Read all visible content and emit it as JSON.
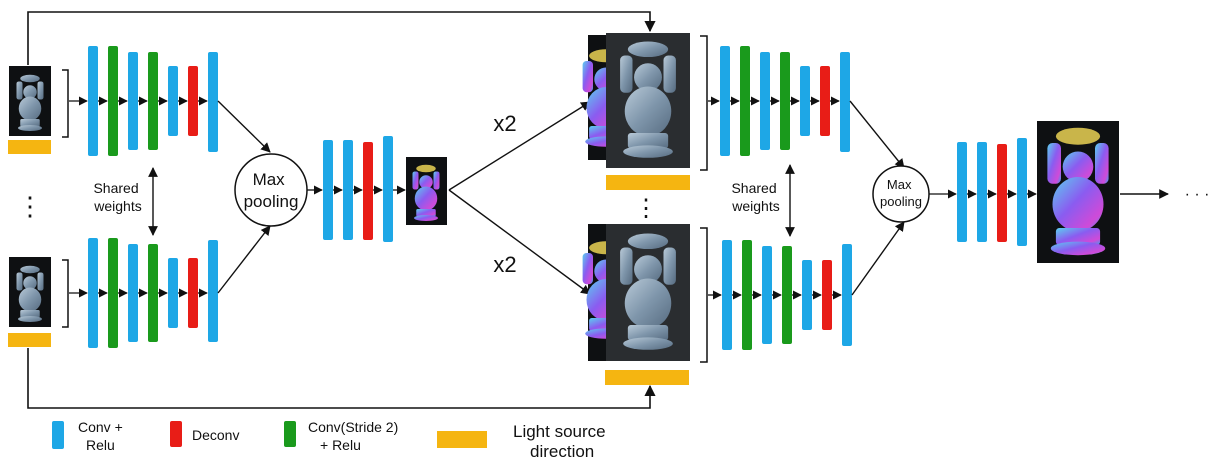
{
  "labels": {
    "max_pooling_1": [
      "Max",
      "pooling"
    ],
    "max_pooling_2": [
      "Max",
      "pooling"
    ],
    "shared_weights_1": [
      "Shared",
      "weights"
    ],
    "shared_weights_2": [
      "Shared",
      "weights"
    ],
    "x2_top": "x2",
    "x2_bottom": "x2",
    "vertical_dots": "⋮",
    "trailing_dots": "· · ·"
  },
  "legend": {
    "conv_relu": [
      "Conv +",
      "Relu"
    ],
    "deconv": "Deconv",
    "conv_stride2": [
      "Conv(Stride 2)",
      "+ Relu"
    ],
    "light_source": [
      "Light source",
      "direction"
    ]
  },
  "colors": {
    "conv_relu": "#1ea7e6",
    "deconv": "#e81d17",
    "conv_stride2": "#1a9a1c",
    "light_source": "#f5b511",
    "image_bg": "#0e1012",
    "statue_gray": "#8aa2b8",
    "normal_map": "#8a5cf0",
    "line": "#111111"
  }
}
